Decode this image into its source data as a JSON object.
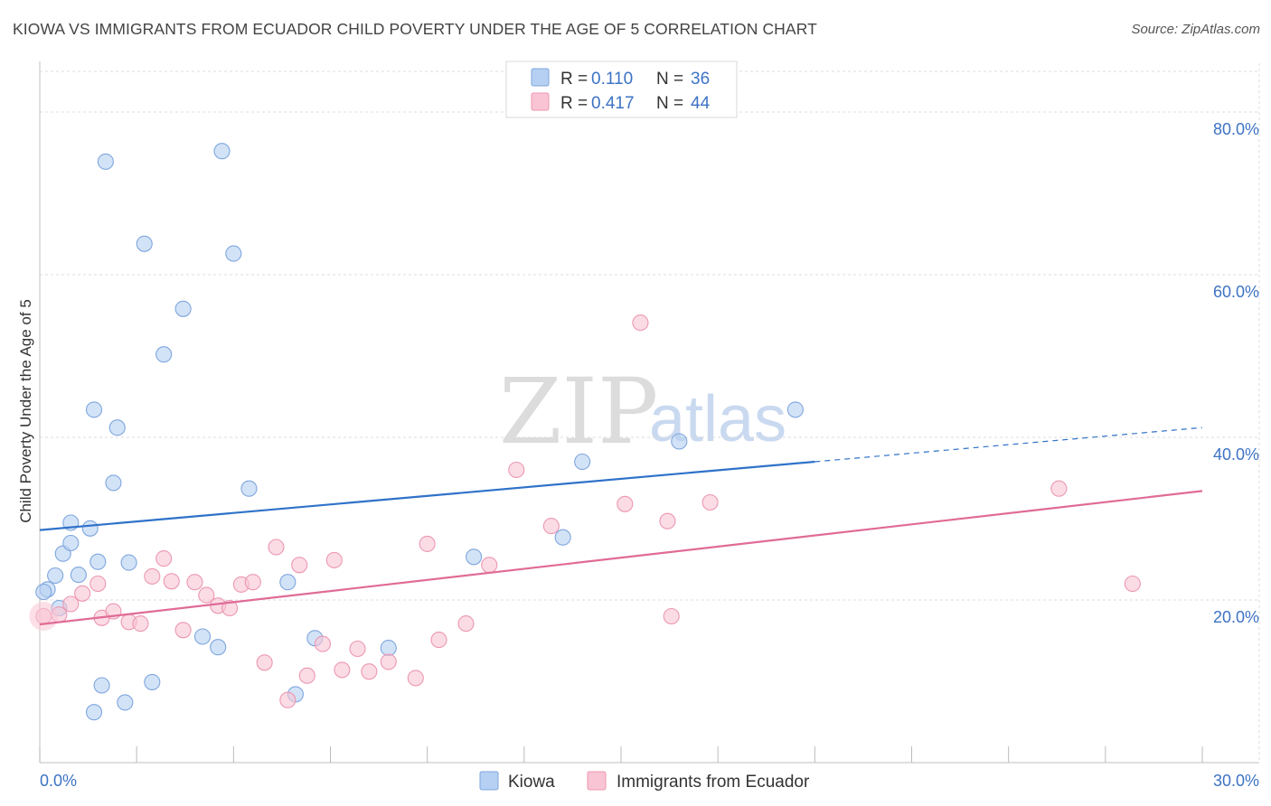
{
  "header": {
    "title": "KIOWA VS IMMIGRANTS FROM ECUADOR CHILD POVERTY UNDER THE AGE OF 5 CORRELATION CHART",
    "source": "Source: ZipAtlas.com"
  },
  "watermark": {
    "zip": "ZIP",
    "atlas": "atlas"
  },
  "colors": {
    "kiowa_fill": "#b5d0f2",
    "kiowa_stroke": "#7ea6de",
    "kiowa_line": "#2f72c9",
    "ecuador_fill": "#f9c4d4",
    "ecuador_stroke": "#ec97b2",
    "ecuador_line": "#e06b96",
    "grid": "#dddddd",
    "tick_text": "#3d73c4"
  },
  "legend": {
    "rows": [
      {
        "r_label": "R = ",
        "r_value": "0.110",
        "n_label": "N = ",
        "n_value": "36"
      },
      {
        "r_label": "R = ",
        "r_value": "0.417",
        "n_label": "N = ",
        "n_value": "44"
      }
    ]
  },
  "chart_data": {
    "type": "scatter",
    "title": "KIOWA VS IMMIGRANTS FROM ECUADOR CHILD POVERTY UNDER THE AGE OF 5 CORRELATION CHART",
    "xlabel": "",
    "ylabel": "Child Poverty Under the Age of 5",
    "xlim": [
      0,
      30
    ],
    "ylim": [
      0,
      85
    ],
    "x_tick_labels": [
      "0.0%",
      "30.0%"
    ],
    "y_ticks": [
      20,
      40,
      60,
      80
    ],
    "y_tick_labels": [
      "20.0%",
      "40.0%",
      "60.0%",
      "80.0%"
    ],
    "grid": true,
    "legend_position": "top-center",
    "series": [
      {
        "name": "Kiowa",
        "points": [
          [
            0.2,
            21.3
          ],
          [
            0.4,
            23.0
          ],
          [
            0.5,
            19.0
          ],
          [
            0.6,
            25.7
          ],
          [
            0.8,
            29.5
          ],
          [
            0.8,
            27.0
          ],
          [
            1.0,
            23.1
          ],
          [
            1.3,
            28.8
          ],
          [
            1.4,
            6.2
          ],
          [
            1.4,
            43.4
          ],
          [
            1.5,
            24.7
          ],
          [
            1.6,
            9.5
          ],
          [
            1.7,
            73.9
          ],
          [
            1.9,
            34.4
          ],
          [
            2.0,
            41.2
          ],
          [
            2.2,
            7.4
          ],
          [
            2.3,
            24.6
          ],
          [
            2.7,
            63.8
          ],
          [
            2.9,
            9.9
          ],
          [
            3.2,
            50.2
          ],
          [
            3.7,
            55.8
          ],
          [
            4.2,
            15.5
          ],
          [
            4.6,
            14.2
          ],
          [
            4.7,
            75.2
          ],
          [
            5.0,
            62.6
          ],
          [
            5.4,
            33.7
          ],
          [
            6.4,
            22.2
          ],
          [
            6.6,
            8.4
          ],
          [
            7.1,
            15.3
          ],
          [
            9.0,
            14.1
          ],
          [
            11.2,
            25.3
          ],
          [
            13.5,
            27.7
          ],
          [
            14.0,
            37.0
          ],
          [
            16.5,
            39.5
          ],
          [
            19.5,
            43.4
          ],
          [
            0.1,
            21.0
          ]
        ],
        "trend": {
          "x_start": 0,
          "y_start": 28.6,
          "x_solid_end": 20.0,
          "x_end": 30,
          "y_end": 41.2
        }
      },
      {
        "name": "Immigrants from Ecuador",
        "points": [
          [
            0.1,
            18.0
          ],
          [
            0.5,
            18.2
          ],
          [
            0.8,
            19.5
          ],
          [
            1.1,
            20.8
          ],
          [
            1.5,
            22.0
          ],
          [
            1.6,
            17.8
          ],
          [
            1.9,
            18.6
          ],
          [
            2.3,
            17.3
          ],
          [
            2.6,
            17.1
          ],
          [
            2.9,
            22.9
          ],
          [
            3.2,
            25.1
          ],
          [
            3.4,
            22.3
          ],
          [
            3.7,
            16.3
          ],
          [
            4.0,
            22.2
          ],
          [
            4.3,
            20.6
          ],
          [
            4.6,
            19.3
          ],
          [
            4.9,
            19.0
          ],
          [
            5.2,
            21.9
          ],
          [
            5.5,
            22.2
          ],
          [
            5.8,
            12.3
          ],
          [
            6.1,
            26.5
          ],
          [
            6.4,
            7.7
          ],
          [
            6.7,
            24.3
          ],
          [
            6.9,
            10.7
          ],
          [
            7.3,
            14.6
          ],
          [
            7.6,
            24.9
          ],
          [
            7.8,
            11.4
          ],
          [
            8.2,
            14.0
          ],
          [
            8.5,
            11.2
          ],
          [
            9.0,
            12.4
          ],
          [
            9.7,
            10.4
          ],
          [
            10.0,
            26.9
          ],
          [
            10.3,
            15.1
          ],
          [
            11.0,
            17.1
          ],
          [
            11.6,
            24.3
          ],
          [
            12.3,
            36.0
          ],
          [
            13.2,
            29.1
          ],
          [
            15.5,
            54.1
          ],
          [
            15.1,
            31.8
          ],
          [
            16.2,
            29.7
          ],
          [
            16.3,
            18.0
          ],
          [
            17.3,
            32.0
          ],
          [
            26.3,
            33.7
          ],
          [
            28.2,
            22.0
          ]
        ],
        "trend": {
          "x_start": 0,
          "y_start": 17.0,
          "x_end": 30,
          "y_end": 33.4
        }
      }
    ]
  }
}
